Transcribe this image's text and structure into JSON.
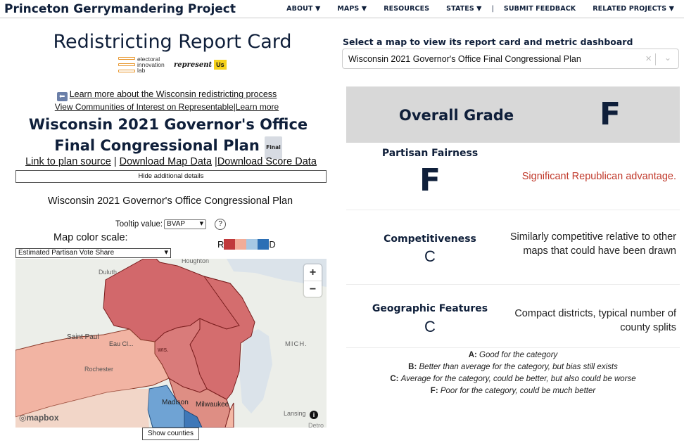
{
  "nav": {
    "brand": "Princeton Gerrymandering Project",
    "items": [
      "ABOUT ▼",
      "MAPS ▼",
      "RESOURCES",
      "STATES ▼"
    ],
    "separator": "|",
    "items_after": [
      "SUBMIT FEEDBACK",
      "RELATED PROJECTS ▼"
    ]
  },
  "header": {
    "title": "Redistricting Report Card",
    "logo_eil_text": "electoral innovation lab",
    "logo_ru_word": "represent",
    "logo_ru_badge": "Us"
  },
  "links": {
    "learn_wi": "Learn more about the Wisconsin redistricting process",
    "view_coi": "View Communities of Interest on Representable",
    "pipe": "|",
    "learn_more": "Learn more"
  },
  "plan": {
    "title": "Wisconsin 2021 Governor's Office Final Congressional Plan",
    "badge": "Final",
    "link_source": "Link to plan source",
    "download_map": "Download Map Data",
    "download_score": "Download Score Data",
    "sep1": " | ",
    "sep2": " |",
    "hide_details": "Hide additional details",
    "subtitle": "Wisconsin 2021 Governor's Office Congressional Plan"
  },
  "map_controls": {
    "tooltip_label": "Tooltip value:",
    "tooltip_value": "BVAP",
    "help": "?",
    "color_scale_label": "Map color scale:",
    "color_scale_value": "Estimated Partisan Vote Share",
    "legend_r": "R",
    "legend_d": "D",
    "legend_colors": [
      "#c0393b",
      "#f2ac98",
      "#a6c8e4",
      "#2c6fb5"
    ],
    "zoom_in": "+",
    "zoom_out": "−",
    "mapbox": "mapbox",
    "info": "i",
    "show_counties": "Show counties"
  },
  "map_labels": {
    "duluth": "Duluth",
    "houghton": "Houghton",
    "saint_paul": "Saint Paul",
    "eau_claire": "Eau Cl...",
    "wis": "WIS.",
    "mich": "MICH.",
    "rochester": "Rochester",
    "madison": "Madison",
    "milwaukee": "Milwaukee",
    "lansing": "Lansing",
    "detroit": "Detro"
  },
  "right": {
    "select_label": "Select a map to view its report card and metric dashboard",
    "selected_plan": "Wisconsin 2021 Governor's Office Final Congressional Plan",
    "clear": "×",
    "chevron": "⌄"
  },
  "grades": {
    "overall_label": "Overall Grade",
    "overall": "F",
    "partisan_label": "Partisan Fairness",
    "partisan": "F",
    "partisan_desc": "Significant Republican advantage.",
    "competitiveness_label": "Competitiveness",
    "competitiveness": "C",
    "competitiveness_desc": "Similarly competitive relative to other maps that could have been drawn",
    "geographic_label": "Geographic Features",
    "geographic": "C",
    "geographic_desc": "Compact districts, typical number of county splits"
  },
  "key": [
    {
      "grade": "A:",
      "text": "Good for the category"
    },
    {
      "grade": "B:",
      "text": "Better than average for the category, but bias still exists"
    },
    {
      "grade": "C:",
      "text": "Average for the category, could be better, but also could be worse"
    },
    {
      "grade": "F:",
      "text": "Poor for the category, could be much better"
    }
  ]
}
